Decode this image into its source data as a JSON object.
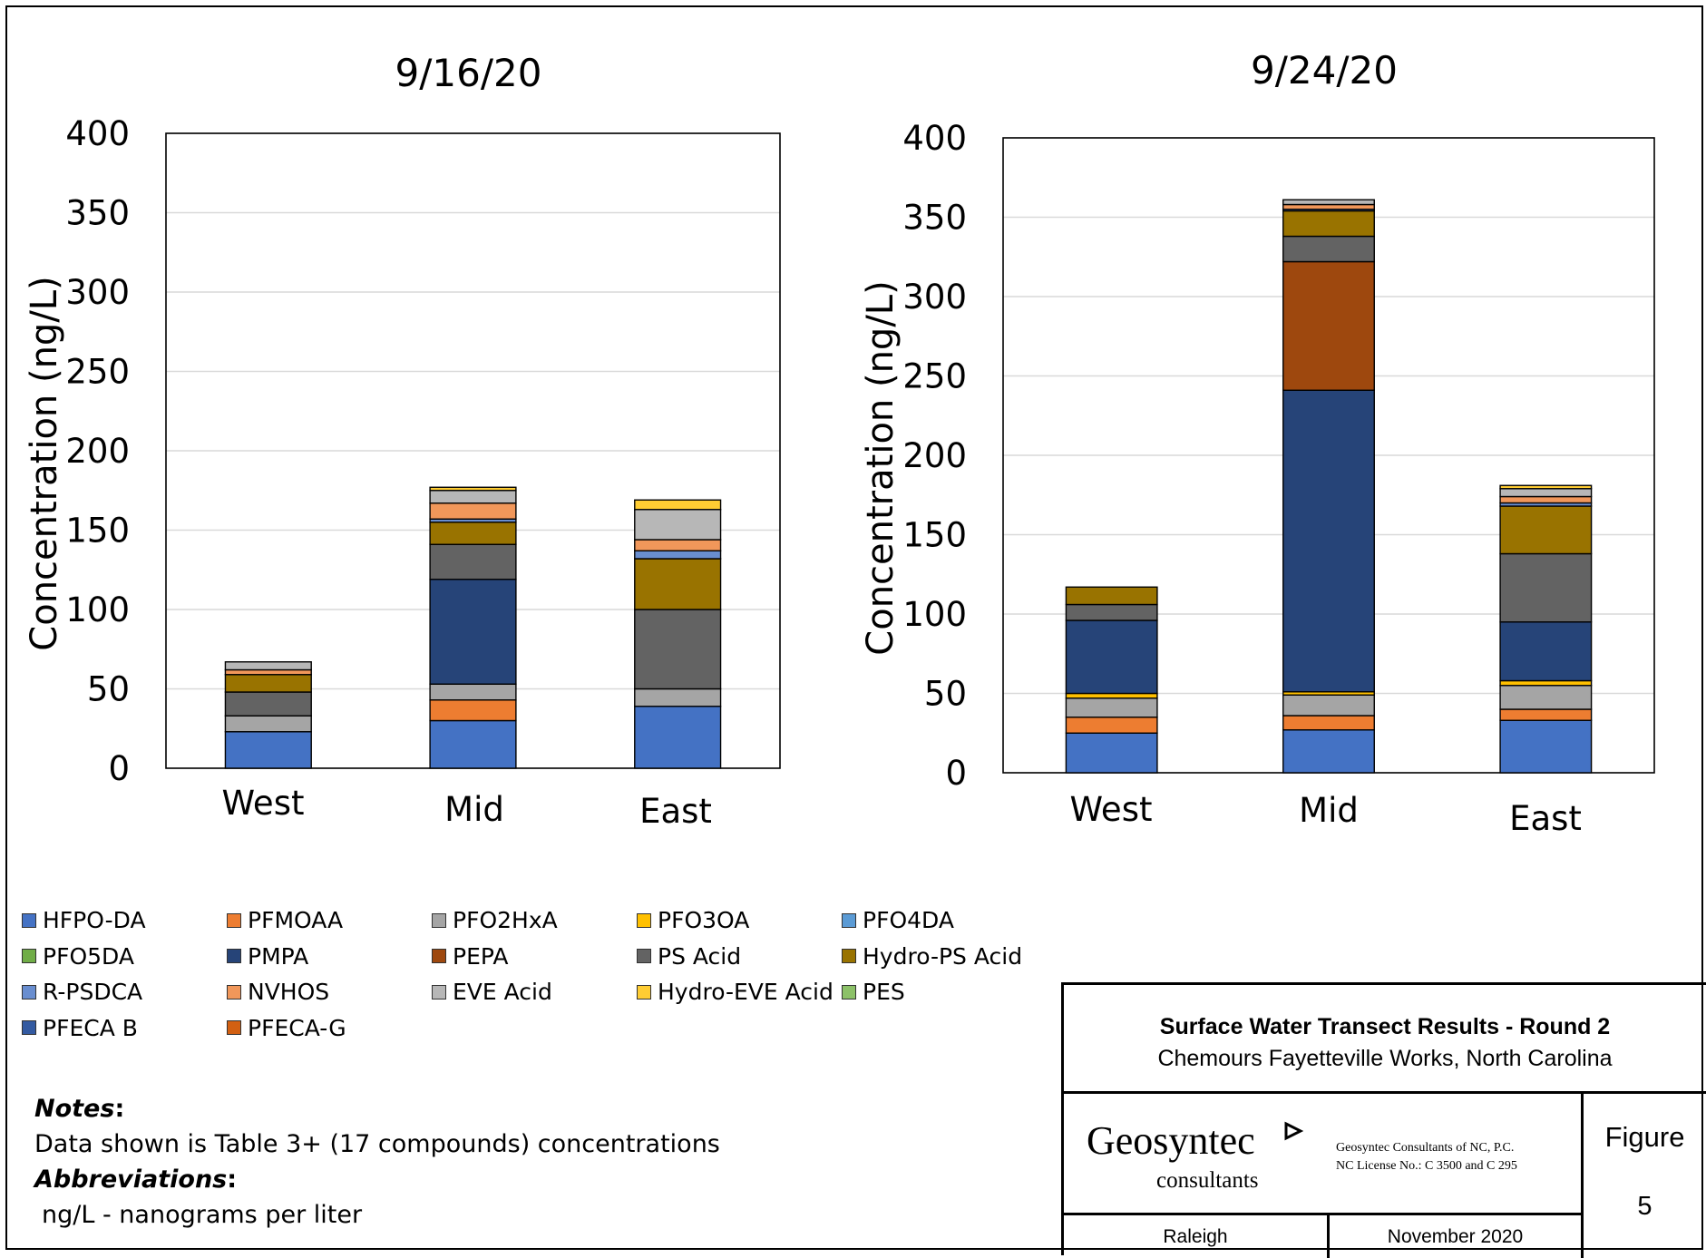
{
  "chart_data": [
    {
      "type": "bar",
      "stacked": true,
      "title": "9/16/20",
      "ylabel": "Concentration (ng/L)",
      "xlabel": "",
      "ylim": [
        0,
        400
      ],
      "yticks": [
        0,
        50,
        100,
        150,
        200,
        250,
        300,
        350,
        400
      ],
      "grid": true,
      "categories": [
        "West",
        "Mid",
        "East"
      ],
      "series": [
        {
          "name": "HFPO-DA",
          "values": [
            23,
            30,
            39
          ]
        },
        {
          "name": "PFMOAA",
          "values": [
            0,
            13,
            0
          ]
        },
        {
          "name": "PFO2HxA",
          "values": [
            10,
            10,
            11
          ]
        },
        {
          "name": "PFO3OA",
          "values": [
            0,
            0,
            0
          ]
        },
        {
          "name": "PFO4DA",
          "values": [
            0,
            0,
            0
          ]
        },
        {
          "name": "PFO5DA",
          "values": [
            0,
            0,
            0
          ]
        },
        {
          "name": "PMPA",
          "values": [
            0,
            66,
            0
          ]
        },
        {
          "name": "PEPA",
          "values": [
            0,
            0,
            0
          ]
        },
        {
          "name": "PS Acid",
          "values": [
            15,
            22,
            50
          ]
        },
        {
          "name": "Hydro-PS Acid",
          "values": [
            11,
            14,
            32
          ]
        },
        {
          "name": "R-PSDCA",
          "values": [
            0,
            2,
            5
          ]
        },
        {
          "name": "NVHOS",
          "values": [
            3,
            10,
            7
          ]
        },
        {
          "name": "EVE Acid",
          "values": [
            5,
            8,
            19
          ]
        },
        {
          "name": "Hydro-EVE Acid",
          "values": [
            0,
            2,
            6
          ]
        },
        {
          "name": "PES",
          "values": [
            0,
            0,
            0
          ]
        },
        {
          "name": "PFECA B",
          "values": [
            0,
            0,
            0
          ]
        },
        {
          "name": "PFECA-G",
          "values": [
            0,
            0,
            0
          ]
        }
      ]
    },
    {
      "type": "bar",
      "stacked": true,
      "title": "9/24/20",
      "ylabel": "Concentration (ng/L)",
      "xlabel": "",
      "ylim": [
        0,
        400
      ],
      "yticks": [
        0,
        50,
        100,
        150,
        200,
        250,
        300,
        350,
        400
      ],
      "grid": true,
      "categories": [
        "West",
        "Mid",
        "East"
      ],
      "series": [
        {
          "name": "HFPO-DA",
          "values": [
            25,
            27,
            33
          ]
        },
        {
          "name": "PFMOAA",
          "values": [
            10,
            9,
            7
          ]
        },
        {
          "name": "PFO2HxA",
          "values": [
            12,
            13,
            15
          ]
        },
        {
          "name": "PFO3OA",
          "values": [
            3,
            2,
            3
          ]
        },
        {
          "name": "PFO4DA",
          "values": [
            0,
            0,
            0
          ]
        },
        {
          "name": "PFO5DA",
          "values": [
            0,
            0,
            0
          ]
        },
        {
          "name": "PMPA",
          "values": [
            46,
            190,
            37
          ]
        },
        {
          "name": "PEPA",
          "values": [
            0,
            81,
            0
          ]
        },
        {
          "name": "PS Acid",
          "values": [
            10,
            16,
            43
          ]
        },
        {
          "name": "Hydro-PS Acid",
          "values": [
            11,
            16,
            30
          ]
        },
        {
          "name": "R-PSDCA",
          "values": [
            0,
            1,
            2
          ]
        },
        {
          "name": "NVHOS",
          "values": [
            0,
            3,
            4
          ]
        },
        {
          "name": "EVE Acid",
          "values": [
            0,
            3,
            5
          ]
        },
        {
          "name": "Hydro-EVE Acid",
          "values": [
            0,
            0,
            2
          ]
        },
        {
          "name": "PES",
          "values": [
            0,
            0,
            0
          ]
        },
        {
          "name": "PFECA B",
          "values": [
            0,
            0,
            0
          ]
        },
        {
          "name": "PFECA-G",
          "values": [
            0,
            0,
            0
          ]
        }
      ]
    }
  ],
  "colors": {
    "HFPO-DA": "#4472c4",
    "PFMOAA": "#ed7d31",
    "PFO2HxA": "#a5a5a5",
    "PFO3OA": "#ffc000",
    "PFO4DA": "#5b9bd5",
    "PFO5DA": "#70ad47",
    "PMPA": "#264478",
    "PEPA": "#9e480e",
    "PS Acid": "#636363",
    "Hydro-PS Acid": "#997300",
    "R-PSDCA": "#698ed0",
    "NVHOS": "#f1975a",
    "EVE Acid": "#b7b7b7",
    "Hydro-EVE Acid": "#ffcd33",
    "PES": "#8cc168",
    "PFECA B": "#335aa1",
    "PFECA-G": "#d26012"
  },
  "legend": {
    "items": [
      "HFPO-DA",
      "PFMOAA",
      "PFO2HxA",
      "PFO3OA",
      "PFO4DA",
      "PFO5DA",
      "PMPA",
      "PEPA",
      "PS Acid",
      "Hydro-PS Acid",
      "R-PSDCA",
      "NVHOS",
      "EVE Acid",
      "Hydro-EVE Acid",
      "PES",
      "PFECA B",
      "PFECA-G"
    ]
  },
  "notes": {
    "heading": "Notes",
    "colon": ":",
    "line1": "Data shown is Table 3+ (17 compounds) concentrations",
    "abbr_heading": "Abbreviations",
    "abbr_colon": ":",
    "line2": "ng/L - nanograms per liter"
  },
  "title_block": {
    "title": "Surface Water Transect Results - Round 2",
    "subtitle": "Chemours Fayetteville Works, North Carolina",
    "company": "Geosyntec",
    "company_sub": "consultants",
    "license_line1": "Geosyntec Consultants of NC, P.C.",
    "license_line2": "NC License No.: C 3500 and C 295",
    "figure_label": "Figure",
    "figure_number": "5",
    "location": "Raleigh",
    "date": "November 2020"
  }
}
